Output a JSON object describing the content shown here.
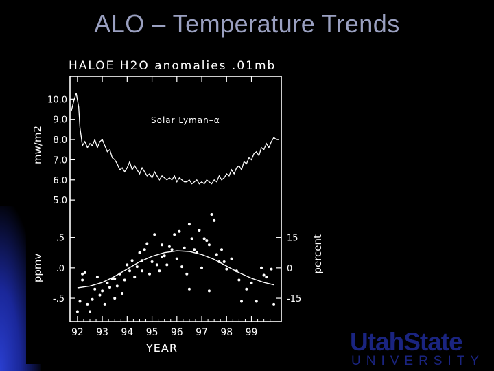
{
  "slide": {
    "title": "ALO – Temperature Trends"
  },
  "logo": {
    "main": "UtahState",
    "sub": "UNIVERSITY"
  },
  "chart_data": {
    "type": "line",
    "title": "HALOE H2O anomalies .01mb",
    "xlabel": "YEAR",
    "x_ticks": [
      "92",
      "93",
      "94",
      "95",
      "96",
      "97",
      "98",
      "99"
    ],
    "xlim": [
      91.7,
      100.2
    ],
    "panels": [
      {
        "name": "solar",
        "ylabel": "mw/m2",
        "y_ticks": [
          "10.0",
          "9.0",
          "8.0",
          "7.0",
          "6.0",
          "5.0"
        ],
        "ylim": [
          4.8,
          11.0
        ],
        "annotation": "Solar Lyman–α",
        "series": [
          {
            "x": [
              91.75,
              91.85,
              91.95,
              92.05,
              92.1,
              92.2,
              92.3,
              92.4,
              92.5,
              92.6,
              92.7,
              92.8,
              92.9,
              93.0,
              93.1,
              93.2,
              93.3,
              93.4,
              93.5,
              93.6,
              93.7,
              93.8,
              93.9,
              94.0,
              94.1,
              94.2,
              94.3,
              94.4,
              94.5,
              94.6,
              94.7,
              94.8,
              94.9,
              95.0,
              95.1,
              95.2,
              95.3,
              95.4,
              95.5,
              95.6,
              95.7,
              95.8,
              95.9,
              96.0,
              96.1,
              96.2,
              96.3,
              96.4,
              96.5,
              96.6,
              96.7,
              96.8,
              96.9,
              97.0,
              97.1,
              97.2,
              97.3,
              97.4,
              97.5,
              97.6,
              97.7,
              97.8,
              97.9,
              98.0,
              98.1,
              98.2,
              98.3,
              98.4,
              98.5,
              98.6,
              98.7,
              98.8,
              98.9,
              99.0,
              99.1,
              99.2,
              99.3,
              99.4,
              99.5,
              99.6,
              99.7,
              99.8,
              99.9,
              100.0,
              100.1
            ],
            "y": [
              9.4,
              9.9,
              10.3,
              9.6,
              8.6,
              7.7,
              7.9,
              7.6,
              7.8,
              7.7,
              8.0,
              7.6,
              7.9,
              8.0,
              7.7,
              7.4,
              7.5,
              7.1,
              7.0,
              6.8,
              6.5,
              6.6,
              6.4,
              6.6,
              6.9,
              6.5,
              6.7,
              6.5,
              6.3,
              6.6,
              6.4,
              6.2,
              6.3,
              6.1,
              6.4,
              6.2,
              6.0,
              6.2,
              6.1,
              6.0,
              6.1,
              6.0,
              6.2,
              5.9,
              6.1,
              6.0,
              5.9,
              5.9,
              6.0,
              5.8,
              5.9,
              6.0,
              5.8,
              5.9,
              5.8,
              6.0,
              5.9,
              5.8,
              6.0,
              5.9,
              6.2,
              6.0,
              6.1,
              6.3,
              6.2,
              6.5,
              6.3,
              6.6,
              6.7,
              6.5,
              6.9,
              6.8,
              7.1,
              7.0,
              7.3,
              7.4,
              7.2,
              7.6,
              7.5,
              7.8,
              7.6,
              7.9,
              8.1,
              8.0,
              8.0
            ]
          }
        ]
      },
      {
        "name": "h2o",
        "ylabel": "ppmv",
        "y_ticks": [
          ".5",
          ".0",
          "-.5"
        ],
        "y_tick_values": [
          0.5,
          0.0,
          -0.5
        ],
        "ylim": [
          -0.85,
          1.05
        ],
        "y2label": "percent",
        "y2_ticks": [
          "15",
          "0",
          "-15"
        ],
        "series": [
          {
            "name": "fit",
            "x": [
              92.0,
              92.5,
              93.0,
              93.5,
              94.0,
              94.5,
              95.0,
              95.5,
              96.0,
              96.5,
              97.0,
              97.5,
              98.0,
              98.5,
              99.0,
              99.5,
              99.9
            ],
            "y": [
              -0.33,
              -0.3,
              -0.24,
              -0.14,
              -0.02,
              0.1,
              0.19,
              0.25,
              0.28,
              0.27,
              0.22,
              0.14,
              0.03,
              -0.08,
              -0.17,
              -0.24,
              -0.28
            ]
          },
          {
            "name": "points",
            "x": [
              92.0,
              92.1,
              92.2,
              92.3,
              92.4,
              92.5,
              92.6,
              92.7,
              92.8,
              92.9,
              93.0,
              93.1,
              93.2,
              93.3,
              93.4,
              93.5,
              93.6,
              93.7,
              93.8,
              93.9,
              94.0,
              94.1,
              94.2,
              94.3,
              94.4,
              94.5,
              94.6,
              94.7,
              94.8,
              94.9,
              95.0,
              95.1,
              95.2,
              95.3,
              95.4,
              95.5,
              95.6,
              95.7,
              95.8,
              95.9,
              96.0,
              96.1,
              96.2,
              96.3,
              96.4,
              96.5,
              96.6,
              96.7,
              96.8,
              96.9,
              97.0,
              97.1,
              97.2,
              97.3,
              97.4,
              97.5,
              97.6,
              97.7,
              97.8,
              97.9,
              98.0,
              98.2,
              98.4,
              98.6,
              98.8,
              99.0,
              99.2,
              99.4,
              99.6,
              99.8,
              99.9,
              92.2,
              93.5,
              94.6,
              95.4,
              96.5,
              97.3,
              98.5,
              99.5
            ],
            "y": [
              -0.72,
              -0.55,
              -0.2,
              -0.08,
              -0.6,
              -0.72,
              -0.52,
              -0.35,
              -0.15,
              -0.45,
              -0.38,
              -0.6,
              -0.25,
              -0.32,
              -0.18,
              -0.5,
              -0.3,
              -0.1,
              -0.42,
              -0.2,
              0.05,
              -0.05,
              0.12,
              -0.15,
              0.02,
              0.25,
              -0.05,
              0.3,
              0.4,
              -0.1,
              0.1,
              0.55,
              0.05,
              -0.05,
              0.38,
              0.2,
              0.05,
              0.35,
              0.3,
              0.55,
              0.15,
              0.6,
              0.02,
              0.33,
              -0.1,
              0.72,
              0.48,
              0.3,
              0.25,
              0.62,
              0.0,
              0.48,
              0.45,
              0.38,
              0.88,
              0.78,
              0.22,
              0.1,
              0.3,
              0.1,
              -0.02,
              0.15,
              -0.05,
              -0.55,
              -0.35,
              -0.25,
              -0.55,
              0.0,
              -0.15,
              -0.02,
              -0.6,
              -0.1,
              -0.18,
              0.12,
              0.18,
              -0.35,
              -0.38,
              -0.2,
              -0.12
            ]
          }
        ]
      }
    ]
  }
}
